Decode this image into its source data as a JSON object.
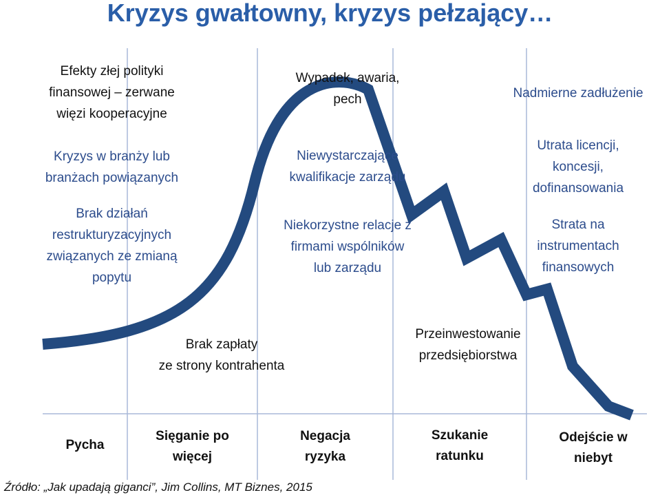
{
  "slide": {
    "title": "Kryzys gwałtowny, kryzys pełzający…",
    "colors": {
      "title": "#2a5ea8",
      "curve": "#234a7f",
      "text_blue": "#2c4c8c",
      "vline": "#a8b8d8"
    }
  },
  "left_labels": [
    {
      "text": "Efekty złej polityki\nfinansowej – zerwane\nwięzi kooperacyjne"
    },
    {
      "text": "Kryzys w branży lub\nbranżach powiązanych"
    },
    {
      "text": "Brak działań\nrestrukturyzacyjnych\nzwiązanych ze zmianą\npopytu"
    }
  ],
  "middle_labels": [
    {
      "text": "Wypadek, awaria,\npech"
    },
    {
      "text": "Niewystarczające\nkwalifikacje zarządu"
    },
    {
      "text": "Niekorzystne relacje z\nfirmami wspólników\nlub zarządu"
    }
  ],
  "right_labels": [
    {
      "text": "Nadmierne zadłużenie"
    },
    {
      "text": "Utrata licencji,\nkoncesji,\ndofinansowania"
    },
    {
      "text": "Strata na\ninstrumentach\nfinansowych"
    }
  ],
  "bottom_labels": [
    {
      "text": "Brak zapłaty\nze strony kontrahenta"
    },
    {
      "text": "Przeinwestowanie\nprzedsiębiorstwa"
    }
  ],
  "stages": [
    {
      "text": "Pycha"
    },
    {
      "text": "Sięganie po\nwięcej"
    },
    {
      "text": "Negacja\nryzyka"
    },
    {
      "text": "Szukanie\nratunku"
    },
    {
      "text": "Odejście w\nniebyt"
    }
  ],
  "source": "Źródło: „Jak upadają giganci”, Jim Collins, MT Biznes, 2015"
}
